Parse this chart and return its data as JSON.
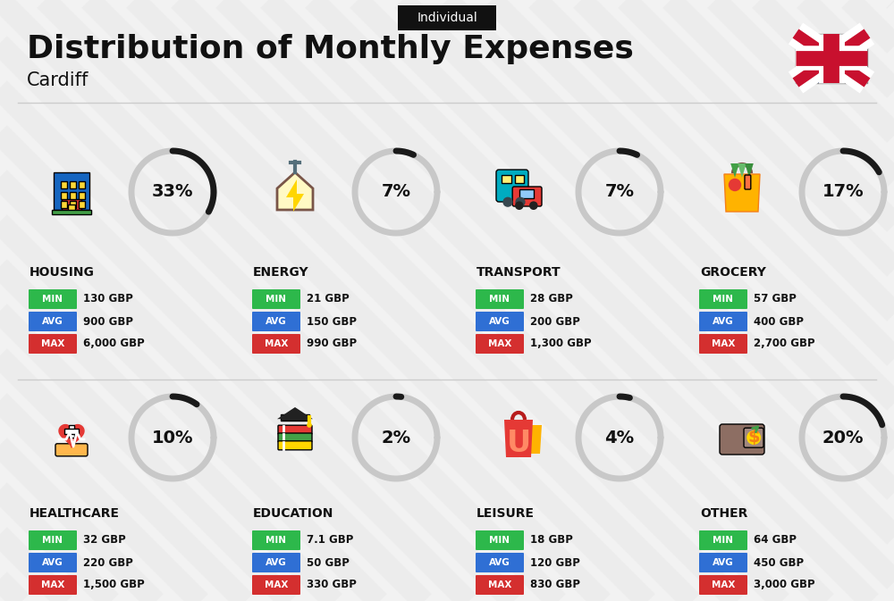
{
  "title": "Distribution of Monthly Expenses",
  "subtitle": "Cardiff",
  "tag": "Individual",
  "bg_color": "#f2f2f2",
  "categories": [
    {
      "name": "HOUSING",
      "percent": 33,
      "min": "130 GBP",
      "avg": "900 GBP",
      "max": "6,000 GBP",
      "col": 0,
      "row": 0
    },
    {
      "name": "ENERGY",
      "percent": 7,
      "min": "21 GBP",
      "avg": "150 GBP",
      "max": "990 GBP",
      "col": 1,
      "row": 0
    },
    {
      "name": "TRANSPORT",
      "percent": 7,
      "min": "28 GBP",
      "avg": "200 GBP",
      "max": "1,300 GBP",
      "col": 2,
      "row": 0
    },
    {
      "name": "GROCERY",
      "percent": 17,
      "min": "57 GBP",
      "avg": "400 GBP",
      "max": "2,700 GBP",
      "col": 3,
      "row": 0
    },
    {
      "name": "HEALTHCARE",
      "percent": 10,
      "min": "32 GBP",
      "avg": "220 GBP",
      "max": "1,500 GBP",
      "col": 0,
      "row": 1
    },
    {
      "name": "EDUCATION",
      "percent": 2,
      "min": "7.1 GBP",
      "avg": "50 GBP",
      "max": "330 GBP",
      "col": 1,
      "row": 1
    },
    {
      "name": "LEISURE",
      "percent": 4,
      "min": "18 GBP",
      "avg": "120 GBP",
      "max": "830 GBP",
      "col": 2,
      "row": 1
    },
    {
      "name": "OTHER",
      "percent": 20,
      "min": "64 GBP",
      "avg": "450 GBP",
      "max": "3,000 GBP",
      "col": 3,
      "row": 1
    }
  ],
  "min_color": "#2db84b",
  "avg_color": "#2f6fd4",
  "max_color": "#d42f2f",
  "label_color": "#ffffff",
  "arc_color": "#1a1a1a",
  "arc_bg_color": "#c8c8c8",
  "text_color": "#111111",
  "badge_bg": "#111111",
  "badge_fg": "#ffffff",
  "stripe_color": "#e8e8e8"
}
